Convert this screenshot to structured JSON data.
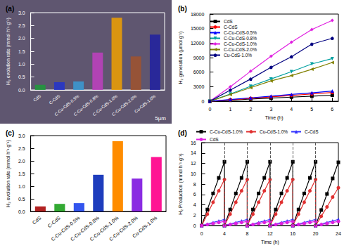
{
  "chart_data": [
    {
      "type": "bar",
      "title": "(a)",
      "y_label": "H₂ evolution rate (mmol h⁻¹ g⁻¹)",
      "categories": [
        "CdS",
        "C-CdS",
        "C-Cu-CdS-0.5%",
        "C-Cu-CdS-0.8%",
        "C-Cu-CdS-1.0%",
        "C-Cu-CdS-2.0%",
        "Cu-CdS-1.0%"
      ],
      "values": [
        0.2,
        0.3,
        0.33,
        1.45,
        2.8,
        1.3,
        2.15
      ],
      "colors": [
        "#1f9a3a",
        "#2233cc",
        "#3a9bd5",
        "#c040c0",
        "#f0a000",
        "#a0522d",
        "#2020a0"
      ],
      "ylim": [
        0,
        3
      ],
      "yticks": [
        {
          "value": 0,
          "label": "0.0"
        },
        0.5,
        {
          "value": 1,
          "label": "1.0"
        },
        1.5,
        {
          "value": 2,
          "label": "2.0"
        },
        2.5,
        {
          "value": 3,
          "label": "3.0"
        }
      ],
      "annotations": [
        "5μm"
      ],
      "grid": false
    },
    {
      "type": "line",
      "title": "(b)",
      "x_label": "Time (h)",
      "y_label": "H₂ generation (μmol g⁻¹)",
      "x": [
        0,
        1,
        2,
        3,
        4,
        5,
        6
      ],
      "series": [
        {
          "name": "CdS",
          "color": "#000000",
          "marker": "square",
          "values": [
            0,
            200,
            450,
            650,
            850,
            1050,
            1250
          ]
        },
        {
          "name": "C-CdS",
          "color": "#ff0000",
          "marker": "circle",
          "values": [
            0,
            300,
            600,
            900,
            1200,
            1500,
            1800
          ]
        },
        {
          "name": "C-Cu-CdS-0.5%",
          "color": "#0000ff",
          "marker": "triangle",
          "values": [
            0,
            350,
            700,
            1050,
            1400,
            1750,
            2100
          ]
        },
        {
          "name": "C-Cu-CdS-0.8%",
          "color": "#00a0a0",
          "marker": "triangle-down",
          "values": [
            0,
            1500,
            3100,
            4600,
            6100,
            7700,
            8800
          ]
        },
        {
          "name": "C-Cu-CdS-1.0%",
          "color": "#e020e0",
          "marker": "diamond",
          "values": [
            0,
            3000,
            6200,
            9300,
            12200,
            14800,
            16700
          ]
        },
        {
          "name": "C-Cu-CdS-2.0%",
          "color": "#808000",
          "marker": "triangle-left",
          "values": [
            0,
            1400,
            2800,
            4200,
            5300,
            6600,
            8000
          ]
        },
        {
          "name": "Cu-CdS-1.0%",
          "color": "#000080",
          "marker": "pentagon",
          "values": [
            0,
            2300,
            4600,
            7000,
            9200,
            11800,
            13000
          ]
        }
      ],
      "xlim": [
        0,
        6.3
      ],
      "xticks": [
        0,
        1,
        2,
        3,
        4,
        5,
        6
      ],
      "ylim": [
        0,
        18000
      ],
      "yticks": [
        0,
        3000,
        6000,
        9000,
        12000,
        15000,
        18000
      ],
      "legend": "upper left",
      "line_style": "solid",
      "grid": false
    },
    {
      "type": "bar",
      "title": "(c)",
      "y_label": "H₂ evolution rate (mmol h⁻¹ g⁻¹)",
      "categories": [
        "CdS",
        "C-CdS",
        "C-Cu-CdS-0.5%",
        "C-Cu-CdS-0.8%",
        "C-Cu-CdS-1.0%",
        "C-Cu-CdS-2.0%",
        "Cu-CdS-1.0%"
      ],
      "values": [
        0.2,
        0.3,
        0.33,
        1.45,
        2.78,
        1.3,
        2.15
      ],
      "colors": [
        "#b22222",
        "#33aa33",
        "#3355ee",
        "#1e3dbd",
        "#ff8c00",
        "#8a2be2",
        "#ff1493"
      ],
      "ylim": [
        0,
        3
      ],
      "yticks": [
        {
          "value": 0,
          "label": "0.0"
        },
        0.5,
        {
          "value": 1,
          "label": "1.0"
        },
        1.5,
        {
          "value": 2,
          "label": "2.0"
        },
        2.5,
        {
          "value": 3,
          "label": "3.0"
        }
      ],
      "grid": false
    },
    {
      "type": "line",
      "title": "(d)",
      "x_label": "Time (h)",
      "y_label": "H₂ Production (mmol h⁻¹ g⁻¹)",
      "x": [
        0,
        1,
        2,
        3,
        4,
        4,
        5,
        6,
        7,
        8,
        8,
        9,
        10,
        11,
        12,
        12,
        13,
        14,
        15,
        16,
        16,
        17,
        18,
        19,
        20,
        20,
        21,
        22,
        23,
        24
      ],
      "series": [
        {
          "name": "C-Cu-CdS-1.0%",
          "color": "#000000",
          "marker": "square",
          "values": [
            0,
            3.1,
            6.2,
            9.2,
            12.3,
            0,
            3.1,
            6.2,
            9.2,
            12.3,
            0,
            3.1,
            6.2,
            9.2,
            12.3,
            0,
            3.1,
            6.2,
            9.2,
            12.3,
            0,
            3.1,
            6.2,
            9.2,
            12.3,
            0,
            3.0,
            6.1,
            9.1,
            12.2
          ]
        },
        {
          "name": "Cu-CdS-1.0%",
          "color": "#e03030",
          "marker": "circle",
          "values": [
            0,
            2.2,
            4.5,
            6.7,
            8.9,
            0,
            2.2,
            4.5,
            6.7,
            8.9,
            0,
            2.2,
            4.5,
            6.7,
            8.9,
            0,
            2.2,
            4.5,
            6.7,
            8.9,
            0,
            2.2,
            4.5,
            6.7,
            8.9,
            0,
            1.8,
            3.6,
            5.5,
            7.3
          ]
        },
        {
          "name": "C-CdS",
          "color": "#3030ff",
          "marker": "triangle",
          "values": [
            0,
            0.3,
            0.6,
            0.9,
            1.2,
            0,
            0.3,
            0.6,
            0.9,
            1.2,
            0,
            0.3,
            0.6,
            0.9,
            1.2,
            0,
            0.3,
            0.6,
            0.9,
            1.2,
            0,
            0.3,
            0.6,
            0.9,
            1.2,
            0,
            0.3,
            0.6,
            0.9,
            1.2
          ]
        },
        {
          "name": "CdS",
          "color": "#e020e0",
          "marker": "circle",
          "values": [
            0,
            0.2,
            0.4,
            0.6,
            0.8,
            0,
            0.2,
            0.4,
            0.6,
            0.8,
            0,
            0.2,
            0.4,
            0.6,
            0.8,
            0,
            0.2,
            0.4,
            0.6,
            0.8,
            0,
            0.2,
            0.4,
            0.6,
            0.8,
            0,
            0.2,
            0.4,
            0.6,
            0.8
          ]
        }
      ],
      "vlines": [
        4,
        8,
        12,
        16,
        20
      ],
      "xlim": [
        0,
        24
      ],
      "xticks": [
        0,
        4,
        8,
        12,
        16,
        20,
        24
      ],
      "ylim": [
        0,
        16
      ],
      "yticks": [
        0,
        2,
        4,
        6,
        8,
        10,
        12,
        14,
        16
      ],
      "legend": "top",
      "line_style": "solid",
      "grid": false
    }
  ]
}
